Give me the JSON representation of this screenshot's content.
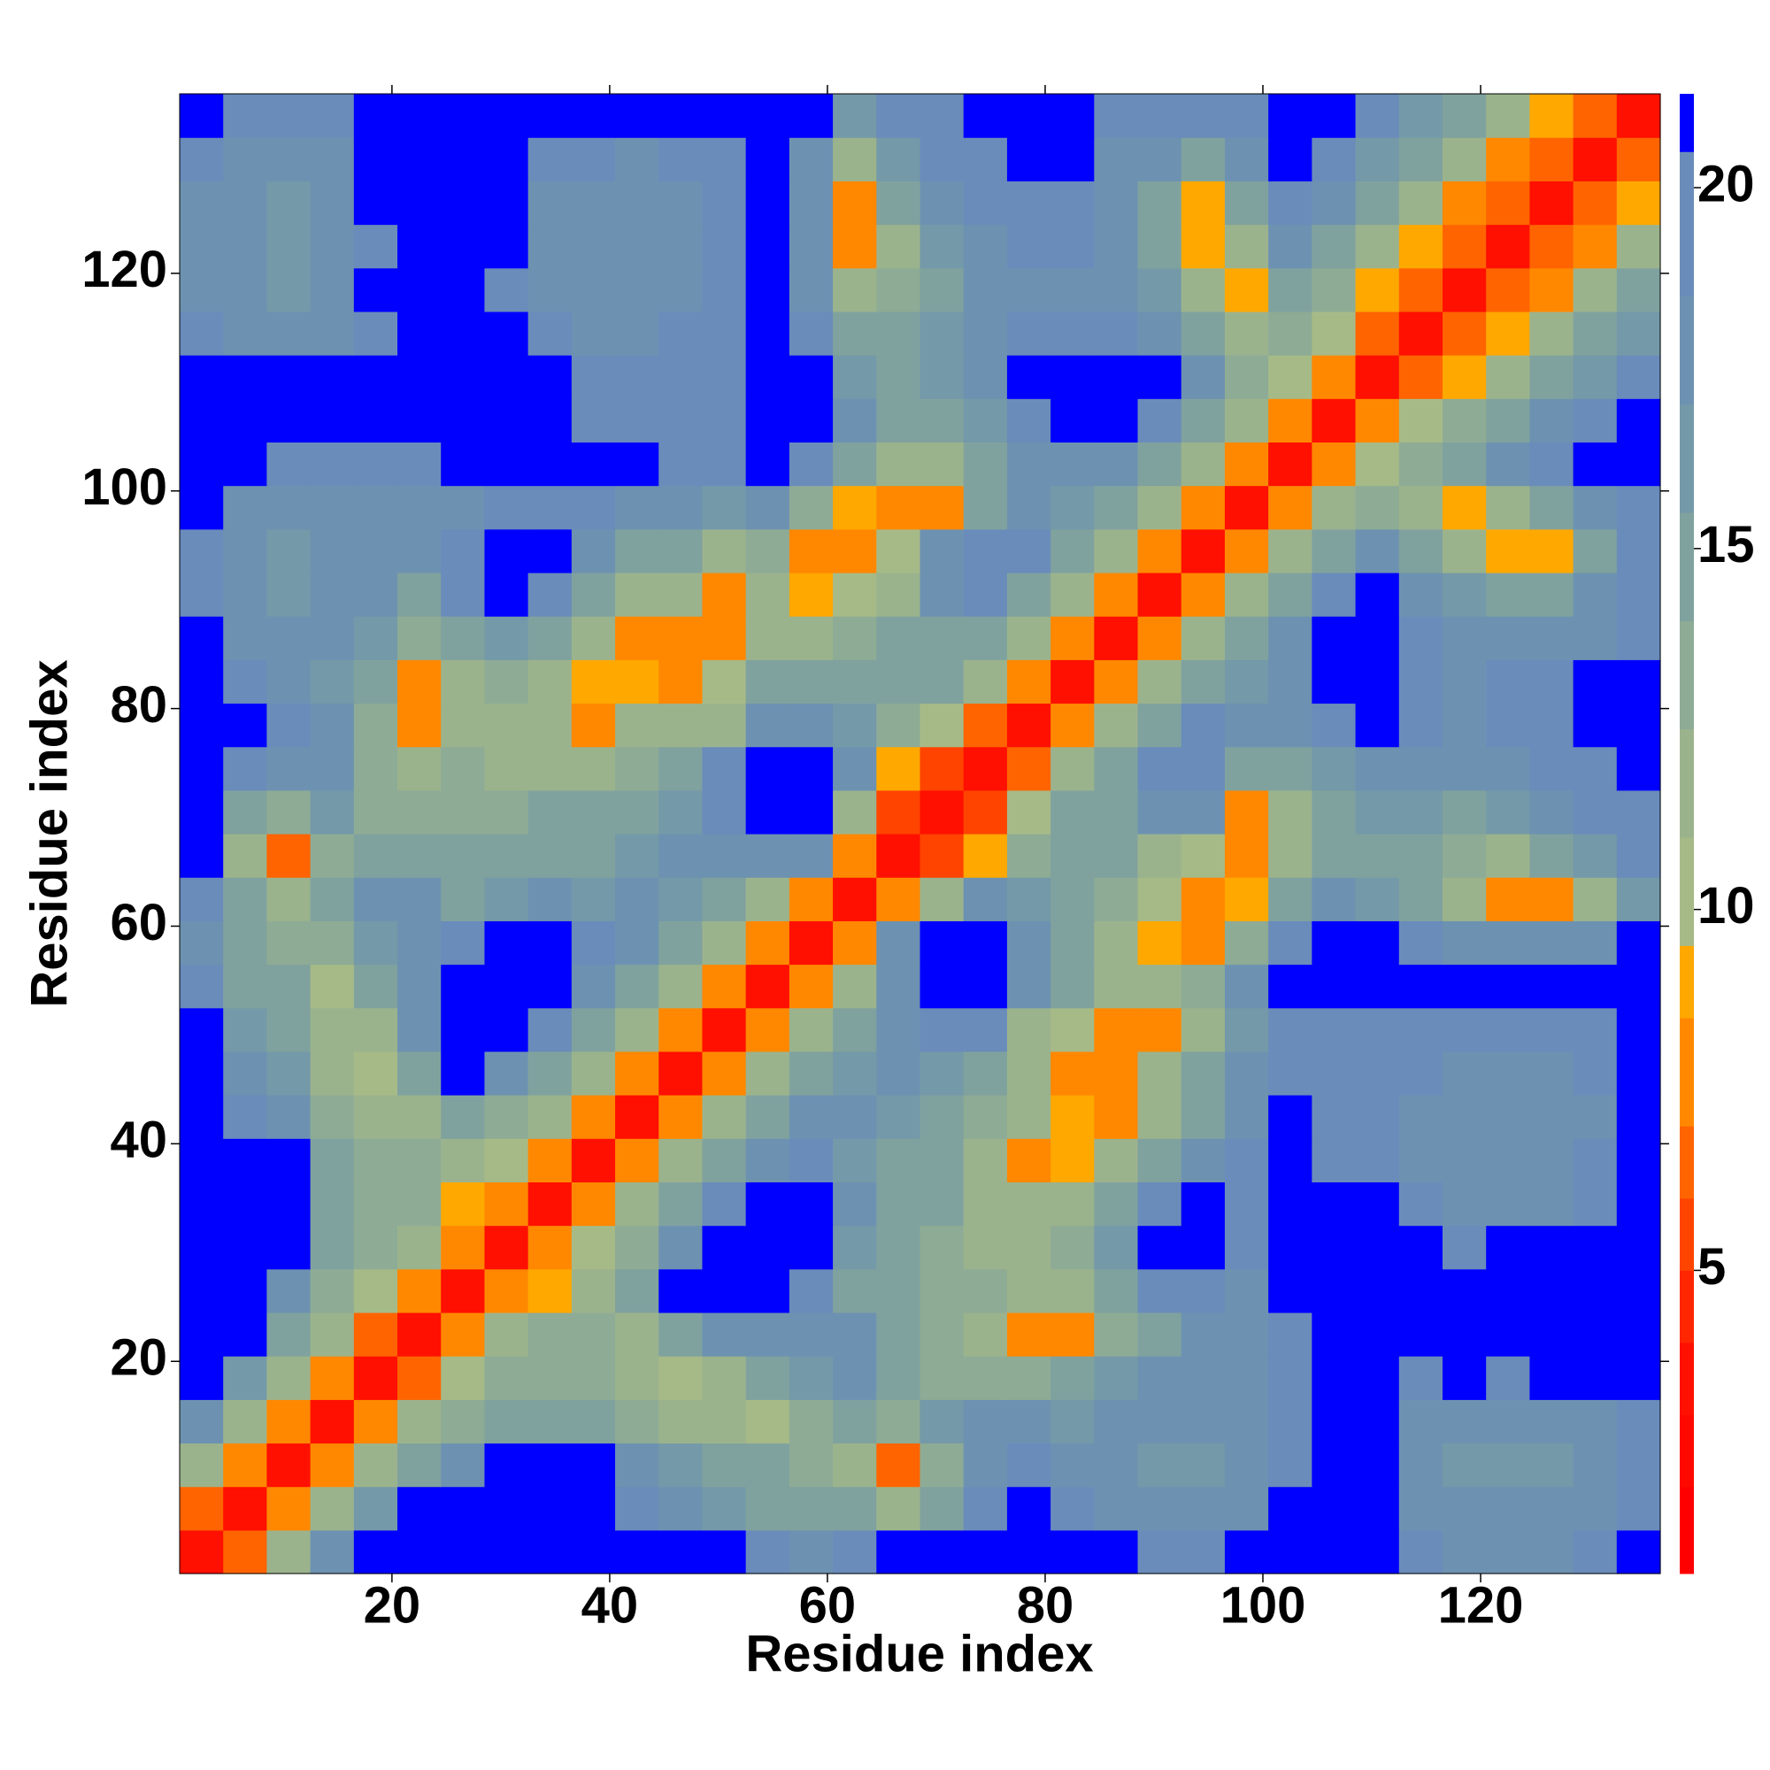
{
  "chart_data": {
    "type": "heatmap",
    "xlabel": "Residue index",
    "ylabel": "Residue index",
    "xlim": [
      0.5,
      136.5
    ],
    "ylim": [
      0.5,
      136.5
    ],
    "xticks": [
      20,
      40,
      60,
      80,
      100,
      120
    ],
    "yticks": [
      20,
      40,
      60,
      80,
      100,
      120
    ],
    "z": [
      [
        3,
        6,
        12,
        17,
        21,
        21,
        21,
        21,
        21,
        21,
        21,
        21,
        21,
        19,
        17,
        19,
        21,
        21,
        21,
        21,
        21,
        21,
        19,
        19,
        21,
        21,
        21,
        21,
        19,
        18,
        18,
        18,
        19,
        21
      ],
      [
        6,
        3,
        7,
        11,
        16,
        21,
        21,
        21,
        21,
        21,
        19,
        17,
        16,
        15,
        15,
        14,
        12,
        15,
        19,
        21,
        19,
        18,
        17,
        17,
        18,
        21,
        21,
        21,
        18,
        17,
        17,
        17,
        18,
        20
      ],
      [
        12,
        7,
        3,
        7,
        11,
        15,
        18,
        21,
        21,
        21,
        18,
        16,
        15,
        14,
        13,
        11,
        6,
        13,
        17,
        19,
        18,
        17,
        16,
        16,
        17,
        20,
        21,
        21,
        17,
        16,
        16,
        16,
        17,
        19
      ],
      [
        17,
        11,
        7,
        3,
        7,
        11,
        13,
        14,
        14,
        14,
        13,
        12,
        11,
        10,
        13,
        15,
        13,
        16,
        18,
        17,
        16,
        17,
        17,
        18,
        18,
        20,
        21,
        21,
        18,
        17,
        17,
        18,
        18,
        20
      ],
      [
        21,
        16,
        11,
        7,
        3,
        6,
        10,
        13,
        13,
        13,
        12,
        10,
        12,
        14,
        16,
        17,
        14,
        13,
        13,
        13,
        14,
        16,
        17,
        17,
        18,
        20,
        21,
        21,
        19,
        21,
        20,
        21,
        21,
        21
      ],
      [
        21,
        21,
        15,
        11,
        6,
        3,
        7,
        11,
        13,
        13,
        12,
        14,
        17,
        18,
        18,
        17,
        15,
        13,
        12,
        8,
        8,
        13,
        15,
        17,
        18,
        20,
        21,
        21,
        21,
        21,
        21,
        21,
        21,
        21
      ],
      [
        21,
        21,
        18,
        13,
        10,
        7,
        3,
        7,
        9,
        12,
        15,
        21,
        21,
        21,
        20,
        15,
        14,
        13,
        13,
        11,
        12,
        14,
        19,
        20,
        18,
        21,
        21,
        21,
        21,
        21,
        21,
        21,
        21,
        21
      ],
      [
        21,
        21,
        21,
        14,
        13,
        11,
        7,
        3,
        7,
        10,
        13,
        17,
        21,
        21,
        21,
        16,
        14,
        13,
        12,
        12,
        13,
        16,
        21,
        21,
        19,
        21,
        21,
        21,
        21,
        20,
        21,
        21,
        21,
        21
      ],
      [
        21,
        21,
        21,
        14,
        13,
        13,
        9,
        7,
        3,
        7,
        11,
        14,
        20,
        21,
        21,
        17,
        15,
        14,
        12,
        11,
        12,
        15,
        20,
        21,
        19,
        21,
        21,
        21,
        19,
        18,
        18,
        18,
        20,
        21
      ],
      [
        21,
        21,
        21,
        14,
        13,
        13,
        12,
        10,
        7,
        3,
        7,
        11,
        14,
        18,
        20,
        16,
        15,
        14,
        12,
        8,
        9,
        12,
        15,
        18,
        19,
        21,
        19,
        19,
        18,
        17,
        17,
        17,
        19,
        21
      ],
      [
        21,
        19,
        18,
        13,
        12,
        12,
        15,
        13,
        11,
        7,
        3,
        7,
        11,
        14,
        17,
        17,
        16,
        15,
        13,
        12,
        9,
        8,
        12,
        15,
        18,
        21,
        19,
        19,
        18,
        17,
        17,
        17,
        18,
        21
      ],
      [
        21,
        17,
        16,
        12,
        10,
        14,
        21,
        17,
        14,
        11,
        7,
        3,
        7,
        11,
        14,
        16,
        17,
        16,
        14,
        12,
        8,
        7,
        11,
        14,
        17,
        20,
        19,
        19,
        19,
        18,
        18,
        18,
        19,
        21
      ],
      [
        21,
        16,
        15,
        11,
        12,
        17,
        21,
        21,
        20,
        14,
        11,
        7,
        3,
        7,
        11,
        14,
        17,
        20,
        19,
        12,
        10,
        8,
        8,
        12,
        16,
        19,
        19,
        19,
        19,
        19,
        19,
        19,
        20,
        21
      ],
      [
        19,
        15,
        14,
        10,
        14,
        18,
        21,
        21,
        21,
        18,
        14,
        11,
        7,
        3,
        7,
        11,
        17,
        21,
        21,
        18,
        15,
        12,
        11,
        13,
        17,
        21,
        21,
        21,
        21,
        21,
        21,
        21,
        21,
        21
      ],
      [
        17,
        15,
        13,
        13,
        16,
        18,
        20,
        21,
        21,
        20,
        17,
        14,
        11,
        7,
        3,
        7,
        17,
        21,
        21,
        17,
        14,
        12,
        9,
        7,
        13,
        20,
        21,
        21,
        19,
        17,
        17,
        18,
        18,
        21
      ],
      [
        19,
        14,
        11,
        15,
        17,
        17,
        15,
        16,
        17,
        16,
        17,
        16,
        14,
        11,
        7,
        3,
        7,
        12,
        17,
        16,
        14,
        13,
        10,
        7,
        9,
        14,
        17,
        16,
        14,
        12,
        8,
        8,
        12,
        16
      ],
      [
        21,
        12,
        6,
        13,
        14,
        15,
        14,
        14,
        15,
        15,
        16,
        17,
        17,
        17,
        17,
        7,
        3,
        5,
        9,
        13,
        14,
        14,
        12,
        10,
        7,
        11,
        14,
        15,
        14,
        13,
        12,
        14,
        16,
        19
      ],
      [
        21,
        15,
        13,
        16,
        13,
        13,
        13,
        13,
        14,
        14,
        15,
        16,
        20,
        21,
        21,
        12,
        5,
        3,
        5,
        10,
        14,
        15,
        18,
        17,
        8,
        12,
        15,
        16,
        16,
        15,
        16,
        17,
        19,
        20
      ],
      [
        21,
        19,
        17,
        18,
        13,
        12,
        13,
        12,
        12,
        12,
        13,
        14,
        19,
        21,
        21,
        17,
        9,
        5,
        3,
        6,
        11,
        15,
        20,
        20,
        15,
        15,
        16,
        17,
        17,
        17,
        18,
        19,
        20,
        21
      ],
      [
        21,
        21,
        19,
        17,
        13,
        8,
        11,
        12,
        11,
        8,
        12,
        12,
        12,
        18,
        17,
        16,
        13,
        10,
        6,
        3,
        7,
        11,
        15,
        20,
        17,
        17,
        20,
        21,
        19,
        18,
        19,
        19,
        21,
        21
      ],
      [
        21,
        19,
        18,
        16,
        14,
        8,
        12,
        13,
        12,
        9,
        9,
        8,
        10,
        15,
        14,
        14,
        14,
        14,
        11,
        7,
        3,
        7,
        11,
        14,
        16,
        18,
        21,
        21,
        19,
        18,
        19,
        20,
        21,
        21
      ],
      [
        21,
        18,
        17,
        17,
        16,
        13,
        14,
        16,
        15,
        12,
        8,
        7,
        8,
        12,
        12,
        13,
        14,
        15,
        15,
        11,
        7,
        3,
        7,
        11,
        14,
        17,
        21,
        21,
        19,
        18,
        17,
        17,
        18,
        20
      ],
      [
        19,
        17,
        16,
        17,
        17,
        15,
        19,
        21,
        20,
        15,
        12,
        11,
        8,
        11,
        9,
        10,
        12,
        18,
        20,
        15,
        11,
        7,
        3,
        7,
        11,
        15,
        20,
        21,
        18,
        16,
        15,
        15,
        17,
        20
      ],
      [
        19,
        17,
        16,
        18,
        17,
        17,
        20,
        21,
        21,
        18,
        15,
        14,
        12,
        13,
        7,
        7,
        10,
        17,
        20,
        20,
        14,
        11,
        7,
        3,
        7,
        11,
        15,
        17,
        14,
        11,
        9,
        9,
        14,
        19
      ],
      [
        21,
        18,
        17,
        18,
        18,
        18,
        18,
        19,
        19,
        19,
        18,
        17,
        16,
        17,
        13,
        9,
        7,
        8,
        15,
        17,
        16,
        14,
        11,
        7,
        3,
        7,
        11,
        13,
        12,
        9,
        12,
        14,
        17,
        20
      ],
      [
        21,
        21,
        20,
        20,
        20,
        20,
        21,
        21,
        21,
        21,
        21,
        20,
        19,
        21,
        20,
        14,
        11,
        12,
        15,
        17,
        18,
        17,
        15,
        11,
        7,
        3,
        7,
        10,
        13,
        15,
        17,
        19,
        21,
        21
      ],
      [
        21,
        21,
        21,
        21,
        21,
        21,
        21,
        21,
        21,
        19,
        19,
        19,
        19,
        21,
        21,
        17,
        14,
        15,
        16,
        20,
        21,
        21,
        20,
        15,
        11,
        7,
        3,
        7,
        10,
        13,
        15,
        17,
        20,
        21
      ],
      [
        21,
        21,
        21,
        21,
        21,
        21,
        21,
        21,
        21,
        19,
        19,
        19,
        19,
        21,
        21,
        16,
        15,
        16,
        17,
        21,
        21,
        21,
        21,
        17,
        13,
        10,
        7,
        3,
        6,
        9,
        12,
        14,
        16,
        19
      ],
      [
        19,
        18,
        17,
        18,
        19,
        21,
        21,
        21,
        19,
        18,
        18,
        19,
        19,
        21,
        19,
        14,
        14,
        16,
        17,
        19,
        19,
        19,
        18,
        14,
        12,
        13,
        10,
        6,
        3,
        6,
        9,
        11,
        14,
        16
      ],
      [
        18,
        17,
        16,
        17,
        21,
        21,
        21,
        20,
        18,
        17,
        17,
        18,
        19,
        21,
        17,
        12,
        13,
        15,
        17,
        18,
        18,
        18,
        16,
        11,
        9,
        15,
        13,
        9,
        6,
        3,
        6,
        8,
        11,
        14
      ],
      [
        18,
        17,
        16,
        17,
        20,
        21,
        21,
        21,
        18,
        17,
        17,
        18,
        19,
        21,
        17,
        8,
        12,
        16,
        18,
        19,
        19,
        17,
        15,
        9,
        12,
        17,
        15,
        12,
        9,
        6,
        3,
        6,
        8,
        12
      ],
      [
        18,
        17,
        16,
        18,
        21,
        21,
        21,
        21,
        18,
        17,
        17,
        18,
        19,
        21,
        18,
        8,
        14,
        17,
        19,
        19,
        20,
        17,
        15,
        9,
        14,
        19,
        17,
        14,
        11,
        8,
        6,
        3,
        6,
        9
      ],
      [
        19,
        18,
        17,
        18,
        21,
        21,
        21,
        21,
        20,
        19,
        18,
        19,
        20,
        21,
        18,
        12,
        16,
        19,
        20,
        21,
        21,
        18,
        17,
        14,
        17,
        21,
        20,
        16,
        14,
        11,
        8,
        6,
        3,
        6
      ],
      [
        21,
        20,
        19,
        20,
        21,
        21,
        21,
        21,
        21,
        21,
        21,
        21,
        21,
        21,
        21,
        16,
        19,
        20,
        21,
        21,
        21,
        20,
        20,
        19,
        20,
        21,
        21,
        19,
        16,
        14,
        12,
        9,
        6,
        3
      ]
    ],
    "colorbar": {
      "lim": [
        0.8,
        21.3
      ],
      "ticks": [
        5,
        10,
        15,
        20
      ],
      "levels": [
        0.8,
        2,
        3,
        4,
        5,
        6,
        7,
        8.5,
        9.5,
        11,
        12.5,
        14,
        15.5,
        17,
        18.5,
        20.5,
        21.3
      ],
      "colors": [
        "#ff0000",
        "#ff0800",
        "#ff1000",
        "#ff2600",
        "#ff4400",
        "#ff6400",
        "#ff8800",
        "#ffa800",
        "#a6ba88",
        "#9bb38d",
        "#8eab95",
        "#80a29e",
        "#7499a8",
        "#6d92b1",
        "#6a8cbb",
        "#0000ff"
      ]
    }
  }
}
